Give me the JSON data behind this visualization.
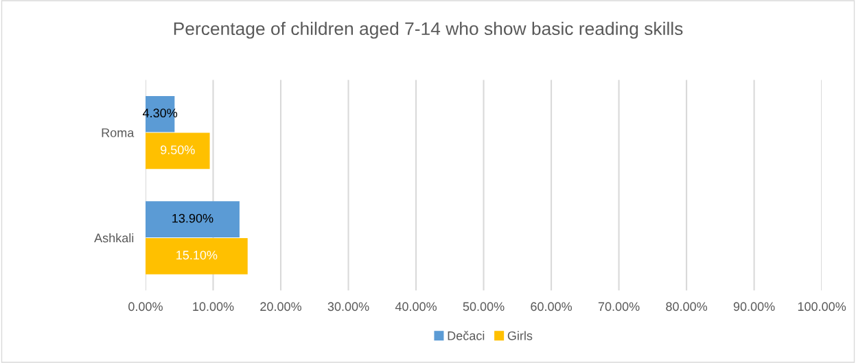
{
  "chart_data": {
    "type": "bar",
    "orientation": "horizontal",
    "title": "Percentage of children aged 7-14 who show basic reading skills",
    "categories": [
      "Roma",
      "Ashkali"
    ],
    "series": [
      {
        "name": "Dečaci",
        "color": "#5b9bd5",
        "values": [
          4.3,
          13.9
        ],
        "value_labels": [
          "4.30%",
          "13.90%"
        ]
      },
      {
        "name": "Girls",
        "color": "#ffc000",
        "values": [
          9.5,
          15.1
        ],
        "value_labels": [
          "9.50%",
          "15.10%"
        ]
      }
    ],
    "xlim": [
      0,
      100
    ],
    "xticks": [
      {
        "value": 0,
        "label": "0.00%"
      },
      {
        "value": 10,
        "label": "10.00%"
      },
      {
        "value": 20,
        "label": "20.00%"
      },
      {
        "value": 30,
        "label": "30.00%"
      },
      {
        "value": 40,
        "label": "40.00%"
      },
      {
        "value": 50,
        "label": "50.00%"
      },
      {
        "value": 60,
        "label": "60.00%"
      },
      {
        "value": 70,
        "label": "70.00%"
      },
      {
        "value": 80,
        "label": "80.00%"
      },
      {
        "value": 90,
        "label": "90.00%"
      },
      {
        "value": 100,
        "label": "100.00%"
      }
    ],
    "grid": "x",
    "legend": "bottom"
  }
}
